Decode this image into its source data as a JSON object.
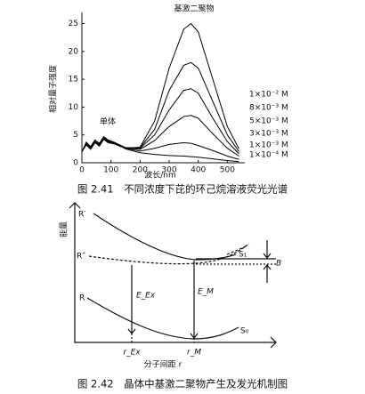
{
  "chart_data": {
    "type": "line",
    "color": "#000000",
    "ylabel": "相对量子强度",
    "xlabel": "波长/nm",
    "annotations": [
      "单体",
      "基激二聚物"
    ],
    "xlim": [
      0,
      560
    ],
    "ylim": [
      0,
      27
    ],
    "xticks": [
      0,
      100,
      200,
      300,
      400,
      500
    ],
    "yticks": [
      0,
      5,
      10,
      15,
      20,
      25
    ],
    "x": [
      0,
      15,
      30,
      45,
      60,
      75,
      90,
      110,
      130,
      150,
      200,
      250,
      300,
      350,
      375,
      400,
      450,
      500,
      540
    ],
    "series": [
      {
        "name": "1×10⁻² M",
        "values": [
          2,
          3.2,
          2.4,
          3.6,
          3,
          4.2,
          3.6,
          3.4,
          3,
          2.6,
          2.8,
          7.5,
          17,
          24,
          25,
          23.5,
          15,
          6.5,
          2.5
        ]
      },
      {
        "name": "8×10⁻³ M",
        "values": [
          2,
          3.3,
          2.5,
          3.7,
          3.1,
          4.3,
          3.7,
          3.5,
          3.1,
          2.7,
          2.7,
          6,
          13,
          17.5,
          18,
          17,
          11,
          5,
          2
        ]
      },
      {
        "name": "5×10⁻³ M",
        "values": [
          2,
          3.4,
          2.6,
          3.8,
          3.2,
          4.4,
          3.8,
          3.6,
          3.2,
          2.7,
          2.6,
          5,
          9.5,
          13,
          13.3,
          12.5,
          8,
          3.8,
          1.6
        ]
      },
      {
        "name": "3×10⁻³ M",
        "values": [
          2,
          3.5,
          2.7,
          3.9,
          3.3,
          4.5,
          3.9,
          3.6,
          3.2,
          2.7,
          2.4,
          4,
          6.5,
          8.3,
          8.5,
          8,
          5.2,
          2.6,
          1.2
        ]
      },
      {
        "name": "1×10⁻³ M",
        "values": [
          2,
          3.6,
          2.8,
          4,
          3.4,
          4.6,
          4,
          3.7,
          3.2,
          2.6,
          2.1,
          2.6,
          3.3,
          3.6,
          3.5,
          3.1,
          2.2,
          1.2,
          0.6
        ]
      },
      {
        "name": "1×10⁻⁴ M",
        "values": [
          2,
          3.7,
          2.9,
          4.1,
          3.5,
          4.7,
          4.1,
          3.7,
          3.1,
          2.5,
          1.8,
          1.5,
          1.3,
          1.2,
          1.1,
          1,
          0.7,
          0.4,
          0.2
        ]
      }
    ],
    "caption": "图 2.41　不同浓度下芘的环己烷溶液荧光光谱"
  },
  "diagram": {
    "y_axis": "能量",
    "x_axis": "分子间距 r",
    "curve_left_labels": [
      "R′",
      "R″",
      "R"
    ],
    "curve_right_labels": [
      "S₁",
      "S₀"
    ],
    "gap_label": "B",
    "transition_labels": [
      "E_Ex",
      "E_M"
    ],
    "x_marks": [
      "r_Ex",
      "r_M"
    ],
    "caption": "图 2.42　晶体中基激二聚物产生及发光机制图"
  }
}
